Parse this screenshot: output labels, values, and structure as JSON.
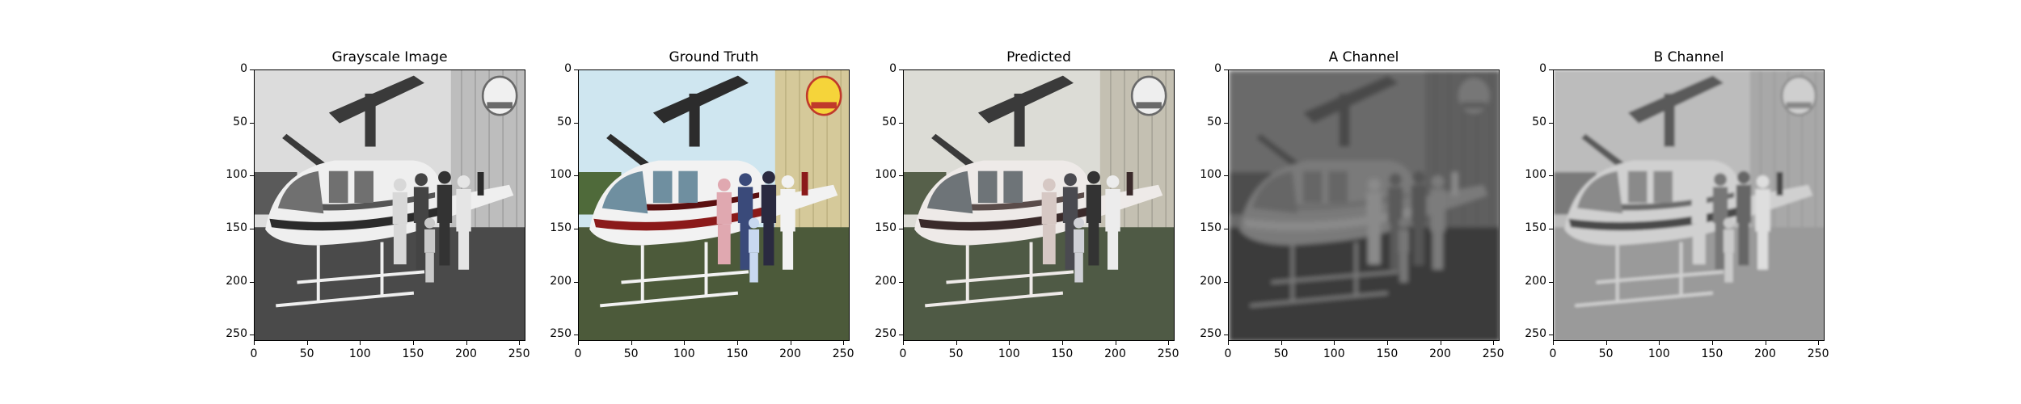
{
  "figure": {
    "panels": [
      {
        "title": "Grayscale Image",
        "variant": "grayscale"
      },
      {
        "title": "Ground Truth",
        "variant": "color"
      },
      {
        "title": "Predicted",
        "variant": "predicted"
      },
      {
        "title": "A Channel",
        "variant": "a-channel"
      },
      {
        "title": "B Channel",
        "variant": "b-channel"
      }
    ],
    "y_ticks": [
      "0",
      "50",
      "100",
      "150",
      "200",
      "250"
    ],
    "x_ticks": [
      "0",
      "50",
      "100",
      "150",
      "200",
      "250"
    ],
    "image_content": "helicopter with a family standing in front, hangar and logo in background"
  }
}
